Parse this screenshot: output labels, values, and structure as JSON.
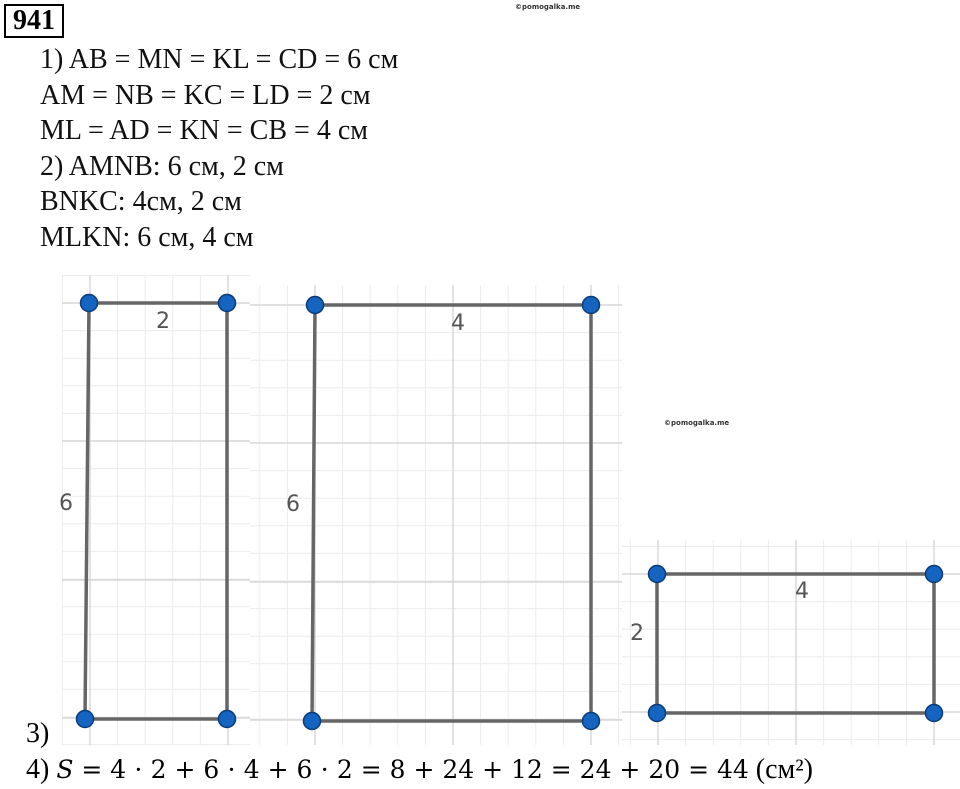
{
  "header": {
    "number": "941"
  },
  "lines": [
    "1) AB = MN = KL = CD = 6 см",
    "AM = NB = KC = LD = 2 см",
    "ML = AD = KN = CB = 4 см",
    "2) AMNB: 6 см, 2 см",
    "BNKC: 4см, 2 см",
    "MLKN: 6 см, 4 см"
  ],
  "figures": [
    {
      "top_label": "2",
      "side_label": "6"
    },
    {
      "top_label": "4",
      "side_label": "6"
    },
    {
      "top_label": "4",
      "side_label": "2"
    }
  ],
  "step3": "3)",
  "formula": {
    "label": "4)",
    "variable": "S",
    "expression": " = 4 ⋅ 2 + 6 ⋅ 4 + 6 ⋅ 2 = 8 + 24 + 12 = 24 + 20 = 44",
    "unit": "(см²)"
  },
  "watermarks": [
    "©pomogalka.me",
    "©pomogalka.me"
  ]
}
